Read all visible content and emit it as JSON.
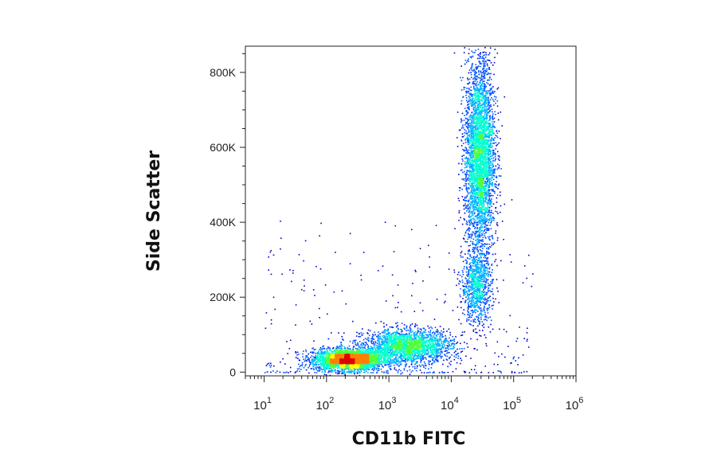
{
  "chart_data": {
    "type": "scatter",
    "style": "density-colored flow cytometry dot plot",
    "xlabel": "CD11b FITC",
    "ylabel": "Side Scatter",
    "x_scale": "log",
    "xlim": [
      5,
      1000000
    ],
    "ylim": [
      -10000,
      870000
    ],
    "x_ticks": [
      {
        "base": "10",
        "exp": "1",
        "value": 10
      },
      {
        "base": "10",
        "exp": "2",
        "value": 100
      },
      {
        "base": "10",
        "exp": "3",
        "value": 1000
      },
      {
        "base": "10",
        "exp": "4",
        "value": 10000
      },
      {
        "base": "10",
        "exp": "5",
        "value": 100000
      },
      {
        "base": "10",
        "exp": "6",
        "value": 1000000
      }
    ],
    "y_ticks": [
      {
        "label": "0",
        "value": 0
      },
      {
        "label": "200K",
        "value": 200000
      },
      {
        "label": "400K",
        "value": 400000
      },
      {
        "label": "600K",
        "value": 600000
      },
      {
        "label": "800K",
        "value": 800000
      }
    ],
    "density_colors": [
      "#0000c8",
      "#0050ff",
      "#00b4ff",
      "#00ffd0",
      "#50ff40",
      "#ffff00",
      "#ff8000",
      "#e00000"
    ],
    "populations": [
      {
        "x_center": 220,
        "x_spread_decades": 0.28,
        "y_center": 35000,
        "y_spread": 14000,
        "points": 3200
      },
      {
        "x_center": 2000,
        "x_spread_decades": 0.35,
        "y_center": 70000,
        "y_spread": 22000,
        "points": 2200
      },
      {
        "x_center": 28000,
        "x_spread_decades": 0.12,
        "y_center": 580000,
        "y_spread": 130000,
        "points": 3800
      },
      {
        "x_center": 25000,
        "x_spread_decades": 0.12,
        "y_center": 230000,
        "y_spread": 50000,
        "points": 900
      }
    ],
    "grid": false,
    "legend": "none"
  }
}
